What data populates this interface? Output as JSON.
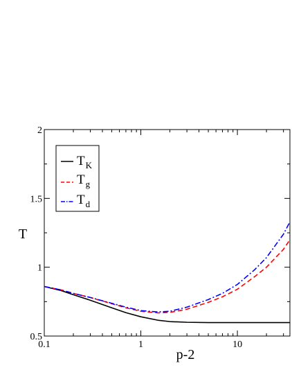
{
  "chart_data": {
    "type": "line",
    "xlabel": "p-2",
    "ylabel": "T",
    "xscale": "log",
    "xlim": [
      0.1,
      35
    ],
    "ylim": [
      0.5,
      2
    ],
    "xticks": [
      0.1,
      1,
      10
    ],
    "xtick_labels": [
      "0.1",
      "1",
      "10"
    ],
    "yticks": [
      0.5,
      1,
      1.5,
      2
    ],
    "ytick_labels": [
      "0.5",
      "1",
      "1.5",
      "2"
    ],
    "grid": false,
    "legend_position": "top-left",
    "series": [
      {
        "name": "T",
        "subscript": "K",
        "color": "#000000",
        "style": "solid",
        "x": [
          0.1,
          0.15,
          0.2,
          0.3,
          0.5,
          0.7,
          1,
          1.5,
          2,
          3,
          5,
          7,
          10,
          20,
          35
        ],
        "y": [
          0.86,
          0.83,
          0.8,
          0.76,
          0.705,
          0.67,
          0.64,
          0.615,
          0.605,
          0.6,
          0.598,
          0.598,
          0.598,
          0.598,
          0.598
        ]
      },
      {
        "name": "T",
        "subscript": "g",
        "color": "#ff0000",
        "style": "dashed",
        "x": [
          0.1,
          0.15,
          0.2,
          0.3,
          0.5,
          0.7,
          1,
          1.5,
          2,
          3,
          5,
          7,
          10,
          15,
          20,
          30,
          35
        ],
        "y": [
          0.86,
          0.835,
          0.81,
          0.78,
          0.735,
          0.705,
          0.68,
          0.668,
          0.672,
          0.695,
          0.745,
          0.785,
          0.84,
          0.93,
          1.0,
          1.13,
          1.2
        ]
      },
      {
        "name": "T",
        "subscript": "d",
        "color": "#0000ff",
        "style": "dashdot",
        "x": [
          0.1,
          0.15,
          0.2,
          0.3,
          0.5,
          0.7,
          1,
          1.5,
          2,
          3,
          5,
          7,
          10,
          15,
          20,
          30,
          35
        ],
        "y": [
          0.86,
          0.835,
          0.81,
          0.78,
          0.738,
          0.71,
          0.685,
          0.675,
          0.68,
          0.71,
          0.765,
          0.81,
          0.875,
          0.98,
          1.07,
          1.24,
          1.33
        ]
      }
    ]
  }
}
